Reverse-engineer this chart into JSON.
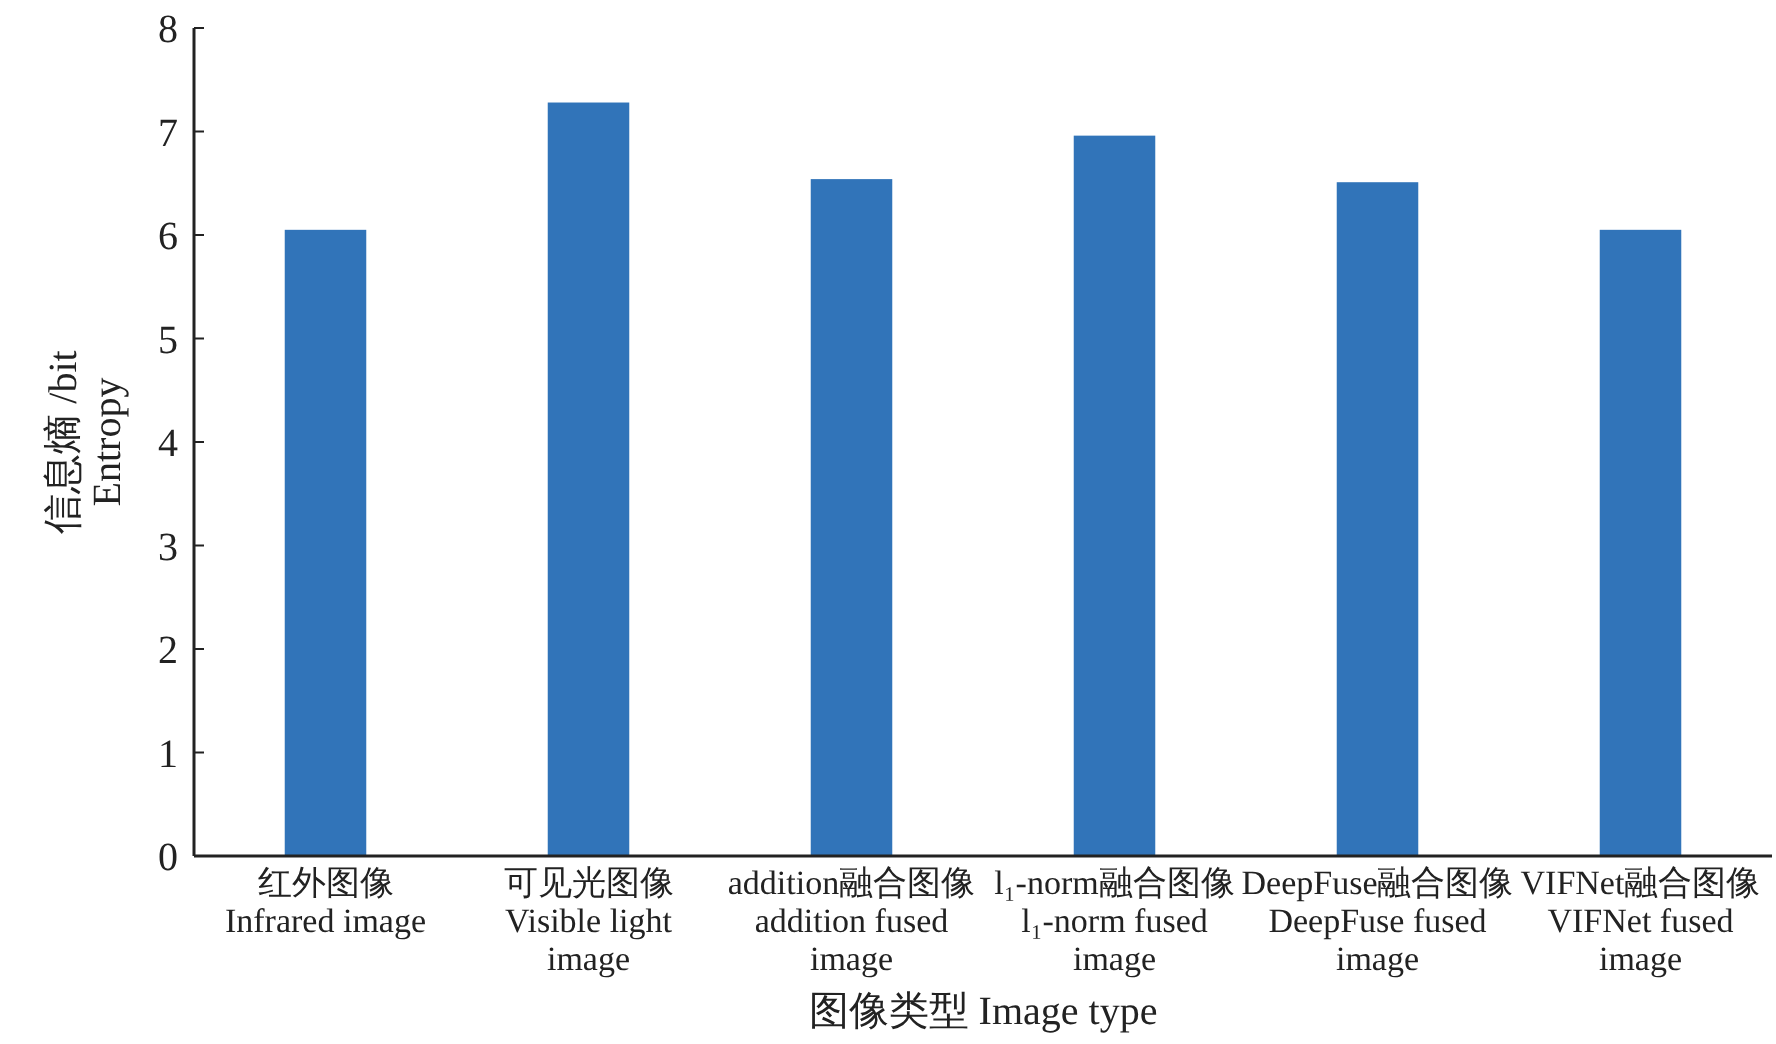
{
  "chart_data": {
    "type": "bar",
    "xlabel": "图像类型 Image type",
    "ylabel": "信息熵 /bit\nEntropy",
    "categories": [
      "红外图像\nInfrared image",
      "可见光图像\nVisible light\nimage",
      "addition融合图像\naddition fused\nimage",
      "l₁-norm融合图像\nl₁-norm fused\nimage",
      "DeepFuse融合图像\nDeepFuse fused\nimage",
      "VIFNet融合图像\nVIFNet fused\nimage"
    ],
    "values": [
      6.05,
      7.28,
      6.54,
      6.96,
      6.51,
      6.05
    ],
    "color": "#3174b9",
    "ylim": [
      0,
      8
    ],
    "yticks": [
      0,
      1,
      2,
      3,
      4,
      5,
      6,
      7,
      8
    ],
    "grid": false
  }
}
